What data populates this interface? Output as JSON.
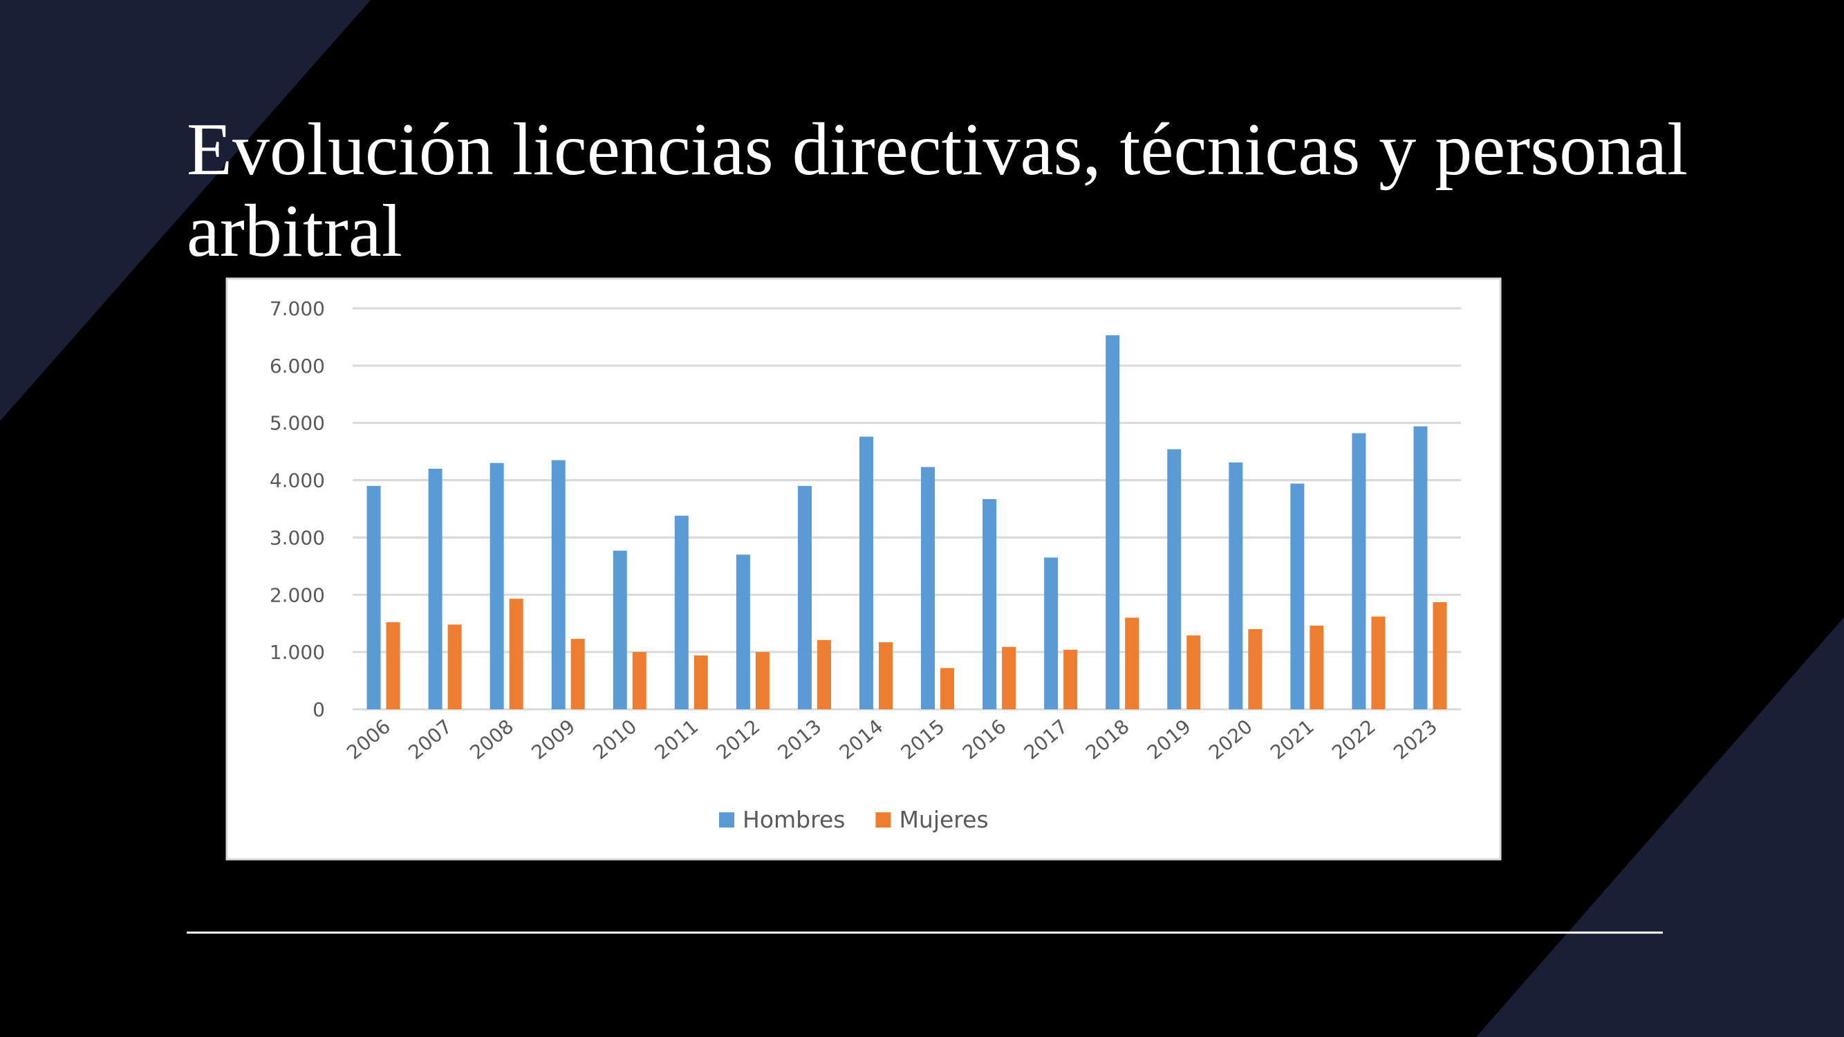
{
  "title": "Evolución licencias directivas, técnicas y personal arbitral",
  "chart_data": {
    "type": "bar",
    "categories": [
      "2006",
      "2007",
      "2008",
      "2009",
      "2010",
      "2011",
      "2012",
      "2013",
      "2014",
      "2015",
      "2016",
      "2017",
      "2018",
      "2019",
      "2020",
      "2021",
      "2022",
      "2023"
    ],
    "series": [
      {
        "name": "Hombres",
        "color": "#5b9bd5",
        "values": [
          3900,
          4200,
          4300,
          4350,
          2770,
          3380,
          2700,
          3900,
          4760,
          4230,
          3670,
          2650,
          6530,
          4540,
          4310,
          3940,
          4820,
          4940
        ]
      },
      {
        "name": "Mujeres",
        "color": "#ed7d31",
        "values": [
          1520,
          1480,
          1930,
          1230,
          1000,
          940,
          1000,
          1210,
          1170,
          720,
          1090,
          1040,
          1600,
          1290,
          1400,
          1460,
          1620,
          1870
        ]
      }
    ],
    "ylim": [
      0,
      7000
    ],
    "yticks": [
      0,
      {
        "value": 1000,
        "label": "1.000"
      },
      {
        "value": 2000,
        "label": "2.000"
      },
      {
        "value": 3000,
        "label": "3.000"
      },
      {
        "value": 4000,
        "label": "4.000"
      },
      {
        "value": 5000,
        "label": "5.000"
      },
      {
        "value": 6000,
        "label": "6.000"
      },
      {
        "value": 7000,
        "label": "7.000"
      }
    ],
    "grid": true,
    "legend": "bottom"
  }
}
